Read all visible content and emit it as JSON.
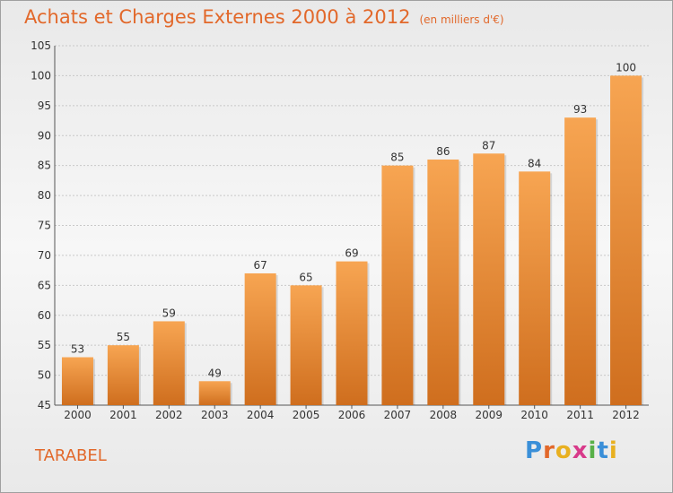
{
  "title": "Achats et Charges Externes 2000 à 2012",
  "unit": "(en milliers d'€)",
  "commune": "TARABEL",
  "brand": {
    "letters": [
      "P",
      "r",
      "o",
      "x",
      "i",
      "t",
      "i"
    ],
    "colors": [
      "#3a8fd8",
      "#e2682a",
      "#e8b020",
      "#d83a8a",
      "#58b048",
      "#3a8fd8",
      "#e8b020"
    ]
  },
  "colors": {
    "accent": "#e2682a",
    "bar_top": "#f7a552",
    "bar_bottom": "#cf6e1e"
  },
  "chart_data": {
    "type": "bar",
    "categories": [
      "2000",
      "2001",
      "2002",
      "2003",
      "2004",
      "2005",
      "2006",
      "2007",
      "2008",
      "2009",
      "2010",
      "2011",
      "2012"
    ],
    "values": [
      53,
      55,
      59,
      49,
      67,
      65,
      69,
      85,
      86,
      87,
      84,
      93,
      100
    ],
    "ylim": [
      45,
      105
    ],
    "yticks": [
      45,
      50,
      55,
      60,
      65,
      70,
      75,
      80,
      85,
      90,
      95,
      100,
      105
    ],
    "grid": true,
    "data_labels": true
  }
}
